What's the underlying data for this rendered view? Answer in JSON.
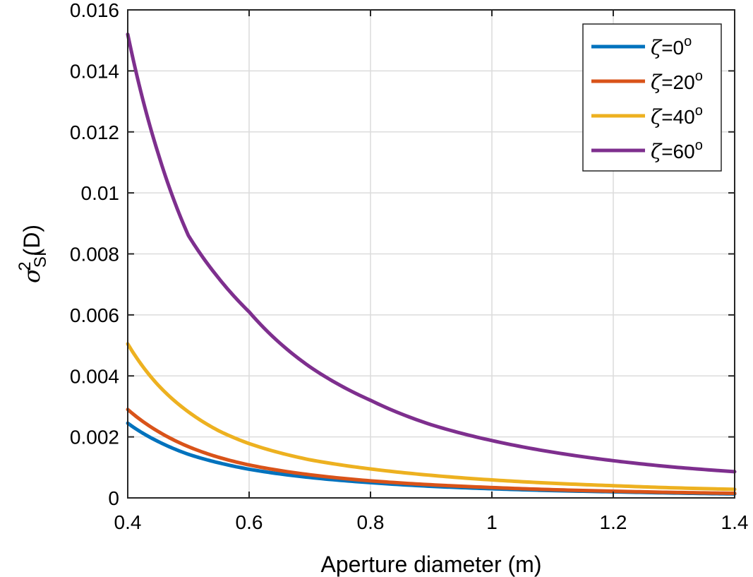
{
  "chart_data": {
    "type": "line",
    "xlabel": "Aperture diameter (m)",
    "ylabel": {
      "symbol": "σ",
      "superscript": "2",
      "subscript": "SI",
      "suffix": "(D)"
    },
    "xlim": [
      0.4,
      1.4
    ],
    "ylim": [
      0,
      0.016
    ],
    "xticks": [
      0.4,
      0.6,
      0.8,
      1.0,
      1.2,
      1.4
    ],
    "xtick_labels": [
      "0.4",
      "0.6",
      "0.8",
      "1",
      "1.2",
      "1.4"
    ],
    "yticks": [
      0,
      0.002,
      0.004,
      0.006,
      0.008,
      0.01,
      0.012,
      0.014,
      0.016
    ],
    "ytick_labels": [
      "0",
      "0.002",
      "0.004",
      "0.006",
      "0.008",
      "0.01",
      "0.012",
      "0.014",
      "0.016"
    ],
    "grid": true,
    "legend_position": "top-right",
    "series": [
      {
        "name": "ζ=0°",
        "label_symbol": "ζ",
        "label_value": "=0",
        "label_unit": "o",
        "color": "#0072BD",
        "x": [
          0.4,
          0.45,
          0.5,
          0.55,
          0.6,
          0.7,
          0.8,
          0.9,
          1.0,
          1.1,
          1.2,
          1.3,
          1.4
        ],
        "y": [
          0.00245,
          0.00185,
          0.00143,
          0.00115,
          0.00094,
          0.00067,
          0.0005,
          0.00038,
          0.0003,
          0.00024,
          0.0002,
          0.00016,
          0.00013
        ]
      },
      {
        "name": "ζ=20°",
        "label_symbol": "ζ",
        "label_value": "=20",
        "label_unit": "o",
        "color": "#D95319",
        "x": [
          0.4,
          0.45,
          0.5,
          0.55,
          0.6,
          0.7,
          0.8,
          0.9,
          1.0,
          1.1,
          1.2,
          1.3,
          1.4
        ],
        "y": [
          0.0029,
          0.00218,
          0.00168,
          0.00133,
          0.00108,
          0.00076,
          0.00056,
          0.00043,
          0.00034,
          0.00027,
          0.00022,
          0.00018,
          0.00015
        ]
      },
      {
        "name": "ζ=40°",
        "label_symbol": "ζ",
        "label_value": "=40",
        "label_unit": "o",
        "color": "#EDB120",
        "x": [
          0.4,
          0.45,
          0.5,
          0.55,
          0.6,
          0.7,
          0.8,
          0.9,
          1.0,
          1.1,
          1.2,
          1.3,
          1.4
        ],
        "y": [
          0.00505,
          0.0037,
          0.00282,
          0.0022,
          0.00178,
          0.00125,
          0.00095,
          0.00074,
          0.00059,
          0.00048,
          0.0004,
          0.00033,
          0.00028
        ]
      },
      {
        "name": "ζ=60°",
        "label_symbol": "ζ",
        "label_value": "=60",
        "label_unit": "o",
        "color": "#7E2F8E",
        "x": [
          0.4,
          0.45,
          0.5,
          0.55,
          0.6,
          0.7,
          0.8,
          0.9,
          1.0,
          1.1,
          1.2,
          1.3,
          1.4
        ],
        "y": [
          0.0152,
          0.0113,
          0.0086,
          0.0072,
          0.0061,
          0.0043,
          0.0032,
          0.0024,
          0.00188,
          0.0015,
          0.00122,
          0.00101,
          0.00086
        ]
      }
    ]
  }
}
